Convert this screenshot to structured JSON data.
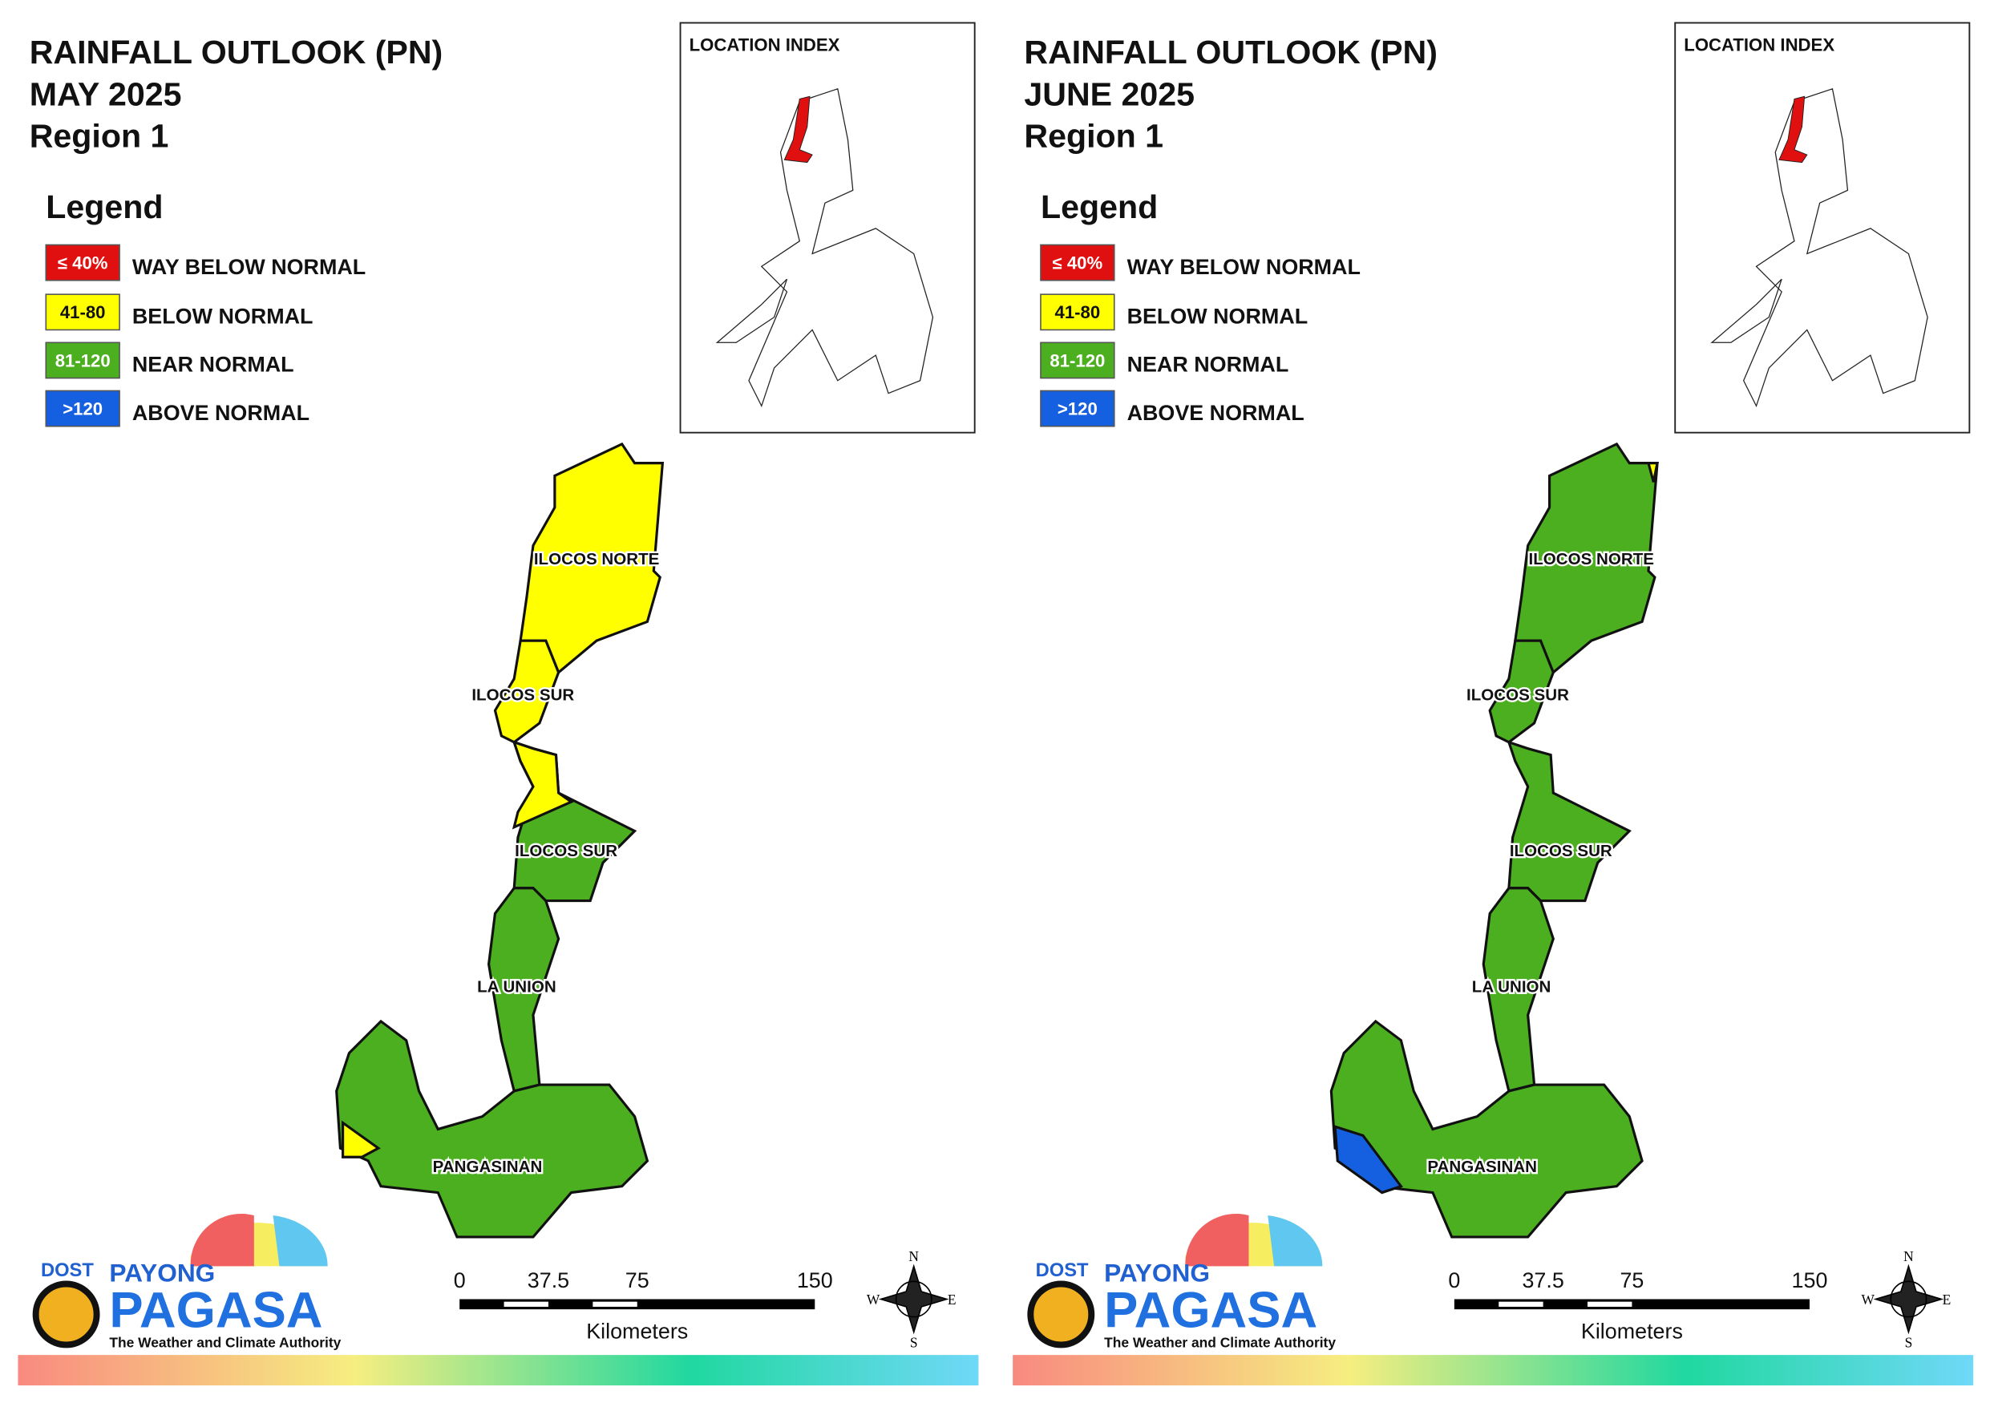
{
  "panels": [
    {
      "title": [
        "RAINFALL OUTLOOK (PN)",
        "MAY 2025",
        "Region 1"
      ],
      "location_index": "LOCATION INDEX",
      "legend": {
        "title": "Legend",
        "items": [
          {
            "swatch": "≤ 40%",
            "label": "WAY BELOW NORMAL",
            "color": "#e01010"
          },
          {
            "swatch": "41-80",
            "label": "BELOW NORMAL",
            "color": "#ffff00"
          },
          {
            "swatch": "81-120",
            "label": "NEAR NORMAL",
            "color": "#4caf20"
          },
          {
            "swatch": ">120",
            "label": "ABOVE NORMAL",
            "color": "#1560e0"
          }
        ]
      },
      "provinces": [
        "ILOCOS NORTE",
        "ILOCOS SUR",
        "ILOCOS SUR",
        "LA UNION",
        "PANGASINAN"
      ],
      "scale": {
        "ticks": [
          0,
          37.5,
          75,
          150
        ],
        "unit": "Kilometers"
      },
      "compass": [
        "N",
        "E",
        "S",
        "W"
      ],
      "logo": {
        "agency": "DOST",
        "brand_top": "PAYONG",
        "brand": "PAGASA",
        "tagline": "The Weather and Climate Authority"
      }
    },
    {
      "title": [
        "RAINFALL OUTLOOK (PN)",
        "JUNE 2025",
        "Region 1"
      ],
      "location_index": "LOCATION INDEX",
      "legend": {
        "title": "Legend",
        "items": [
          {
            "swatch": "≤ 40%",
            "label": "WAY BELOW NORMAL",
            "color": "#e01010"
          },
          {
            "swatch": "41-80",
            "label": "BELOW NORMAL",
            "color": "#ffff00"
          },
          {
            "swatch": "81-120",
            "label": "NEAR NORMAL",
            "color": "#4caf20"
          },
          {
            "swatch": ">120",
            "label": "ABOVE NORMAL",
            "color": "#1560e0"
          }
        ]
      },
      "provinces": [
        "ILOCOS NORTE",
        "ILOCOS SUR",
        "ILOCOS SUR",
        "LA UNION",
        "PANGASINAN"
      ],
      "scale": {
        "ticks": [
          0,
          37.5,
          75,
          150
        ],
        "unit": "Kilometers"
      },
      "compass": [
        "N",
        "E",
        "S",
        "W"
      ],
      "logo": {
        "agency": "DOST",
        "brand_top": "PAYONG",
        "brand": "PAGASA",
        "tagline": "The Weather and Climate Authority"
      }
    }
  ]
}
